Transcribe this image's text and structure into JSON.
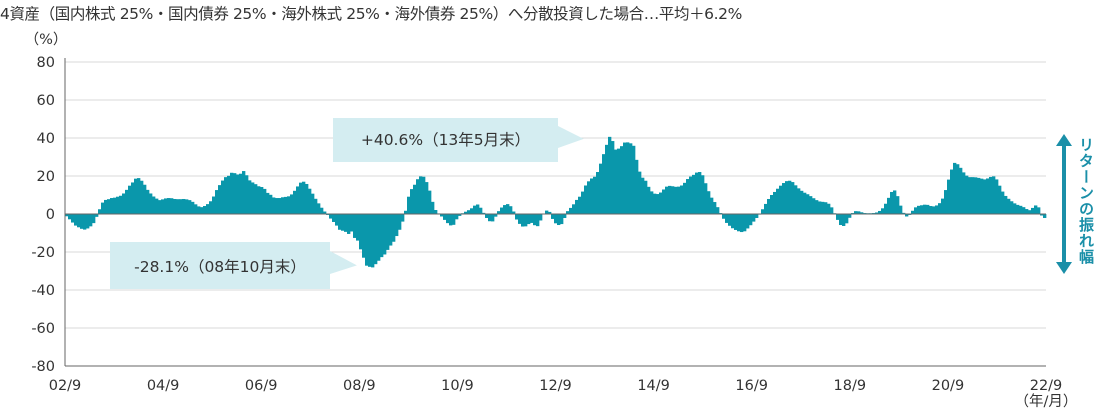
{
  "title": "4資産（国内株式 25%・国内債券 25%・海外株式 25%・海外債券 25%）へ分散投資した場合…平均＋6.2%",
  "colors": {
    "bar": "#0a97ab",
    "grid": "#d9d9d9",
    "axis": "#666666",
    "callout_bg": "#d4edf1",
    "accent_arrow": "#1a8fa8"
  },
  "side_label": "リターンの振れ幅",
  "callouts": {
    "max": {
      "text": "+40.6%（13年5月末）",
      "x": "2013-05",
      "y": 40.6
    },
    "min": {
      "text": "-28.1%（08年10月末）",
      "x": "2008-10",
      "y": -28.1
    }
  },
  "chart_data": {
    "type": "bar",
    "title": "",
    "xlabel": "（年/月）",
    "ylabel": "（%）",
    "ylim": [
      -80,
      80
    ],
    "yticks": [
      80,
      60,
      40,
      20,
      0,
      -20,
      -40,
      -60,
      -80
    ],
    "xticks": [
      "02/9",
      "04/9",
      "06/9",
      "08/9",
      "10/9",
      "12/9",
      "14/9",
      "16/9",
      "18/9",
      "20/9",
      "22/9"
    ],
    "start": "2002-09",
    "end": "2022-09",
    "grid": true,
    "legend": "none",
    "values": [
      -1.2,
      -2.8,
      -4.5,
      -6.1,
      -7.0,
      -7.8,
      -8.2,
      -7.6,
      -6.5,
      -4.8,
      -1.5,
      2.5,
      6.0,
      7.4,
      7.8,
      8.4,
      8.6,
      9.1,
      9.6,
      10.8,
      12.7,
      14.9,
      16.6,
      18.6,
      18.9,
      17.5,
      15.4,
      12.7,
      10.8,
      9.2,
      8.1,
      7.3,
      7.7,
      8.2,
      8.4,
      8.3,
      7.9,
      7.8,
      7.8,
      7.9,
      7.7,
      7.3,
      6.4,
      5.1,
      4.0,
      3.6,
      4.2,
      5.2,
      6.7,
      9.2,
      12.6,
      15.2,
      17.6,
      19.4,
      20.1,
      21.7,
      21.5,
      20.8,
      21.2,
      22.6,
      20.4,
      17.7,
      16.6,
      15.7,
      14.6,
      14.2,
      13.2,
      11.1,
      10.1,
      8.7,
      8.4,
      8.4,
      8.8,
      9.0,
      9.3,
      10.3,
      12.2,
      14.5,
      16.5,
      17.0,
      15.8,
      13.3,
      10.7,
      8.0,
      5.6,
      3.3,
      1.3,
      -0.5,
      -2.4,
      -4.2,
      -6.1,
      -8.3,
      -8.8,
      -9.4,
      -10.5,
      -9.2,
      -12.6,
      -14.0,
      -18.6,
      -23.0,
      -27.2,
      -27.8,
      -28.1,
      -26.4,
      -24.6,
      -22.7,
      -21.3,
      -18.9,
      -16.6,
      -14.6,
      -11.6,
      -8.3,
      -4.0,
      1.7,
      9.1,
      13.1,
      15.4,
      18.3,
      19.8,
      19.6,
      16.8,
      12.3,
      6.4,
      2.1,
      0.3,
      -1.3,
      -3.1,
      -4.8,
      -6.0,
      -5.7,
      -2.8,
      -1.0,
      0.4,
      1.2,
      2.0,
      3.0,
      4.4,
      5.0,
      3.3,
      0.6,
      -2.1,
      -3.8,
      -3.9,
      -1.4,
      1.5,
      3.4,
      4.7,
      5.2,
      4.1,
      1.3,
      -2.9,
      -5.2,
      -6.6,
      -6.5,
      -5.3,
      -4.7,
      -5.9,
      -6.4,
      -3.4,
      0.2,
      1.8,
      1.1,
      -2.6,
      -4.9,
      -5.8,
      -5.3,
      -2.1,
      1.5,
      3.2,
      5.1,
      7.4,
      9.1,
      11.8,
      15.0,
      17.2,
      18.7,
      19.6,
      22.1,
      26.5,
      31.5,
      36.4,
      40.6,
      38.4,
      33.9,
      34.4,
      35.7,
      37.6,
      37.7,
      37.2,
      35.9,
      28.5,
      22.3,
      19.1,
      17.5,
      14.3,
      11.9,
      10.7,
      10.5,
      11.3,
      12.9,
      14.4,
      14.8,
      14.6,
      14.3,
      14.4,
      15.0,
      16.4,
      18.4,
      19.7,
      20.6,
      21.8,
      22.1,
      20.4,
      16.2,
      12.0,
      8.6,
      6.3,
      3.6,
      0.5,
      -2.5,
      -4.7,
      -6.2,
      -7.5,
      -8.4,
      -9.1,
      -9.5,
      -9.1,
      -7.6,
      -5.9,
      -4.0,
      -2.1,
      0.0,
      2.5,
      5.3,
      7.9,
      10.0,
      11.6,
      13.3,
      14.9,
      16.3,
      17.3,
      17.5,
      16.8,
      15.1,
      13.5,
      12.2,
      11.2,
      10.4,
      9.4,
      8.3,
      7.3,
      6.6,
      6.4,
      6.2,
      5.4,
      3.5,
      0.4,
      -3.1,
      -5.8,
      -6.3,
      -4.9,
      -2.0,
      0.5,
      1.5,
      1.4,
      0.9,
      0.5,
      0.4,
      0.4,
      0.5,
      0.8,
      1.6,
      3.0,
      5.4,
      8.5,
      11.6,
      12.4,
      9.4,
      4.4,
      0.6,
      -1.3,
      -0.5,
      1.7,
      3.5,
      4.3,
      4.6,
      4.9,
      4.8,
      4.2,
      4.0,
      4.5,
      5.7,
      8.1,
      12.6,
      18.1,
      23.4,
      26.9,
      26.2,
      24.3,
      21.9,
      20.2,
      19.4,
      19.4,
      19.3,
      19.0,
      18.6,
      18.2,
      18.7,
      19.5,
      19.8,
      18.2,
      14.9,
      11.8,
      9.5,
      8.0,
      6.7,
      5.6,
      4.8,
      4.3,
      3.6,
      2.6,
      2.0,
      3.2,
      4.5,
      3.5,
      -0.8,
      -2.1
    ]
  }
}
